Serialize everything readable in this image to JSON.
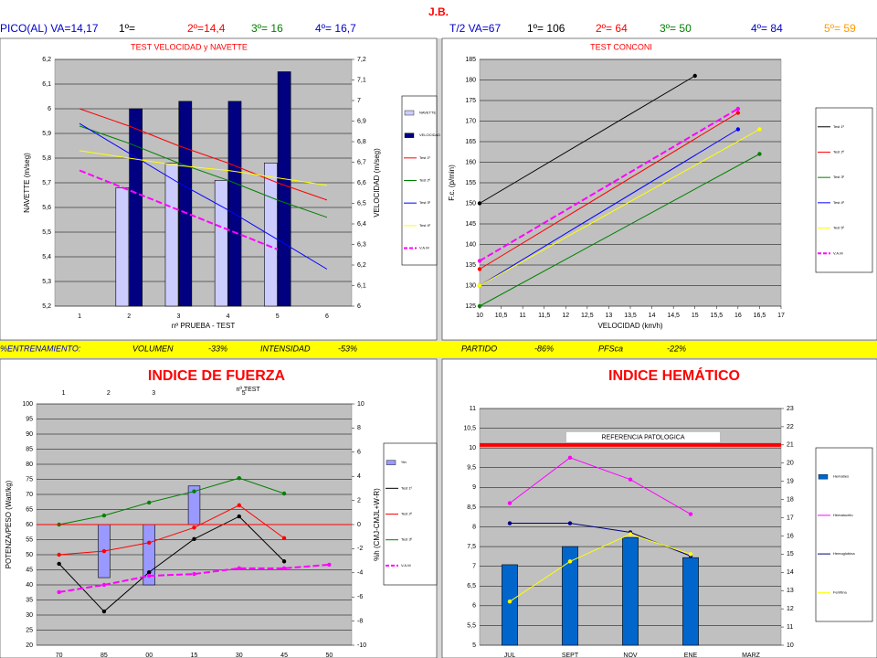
{
  "header": {
    "title": "J.B.",
    "row1": [
      {
        "text": "PICO(AL) VA=14,17",
        "color": "#0000cc"
      },
      {
        "text": "1º=",
        "color": "#000000"
      },
      {
        "text": "2º=14,4",
        "color": "#ff0000"
      },
      {
        "text": "3º= 16",
        "color": "#008000"
      },
      {
        "text": "4º= 16,7",
        "color": "#0000cc"
      },
      {
        "text": "T/2 VA=67",
        "color": "#0000cc"
      },
      {
        "text": "1º= 106",
        "color": "#000000"
      },
      {
        "text": "2º= 64",
        "color": "#ff0000"
      },
      {
        "text": "3º= 50",
        "color": "#008000"
      },
      {
        "text": "4º= 84",
        "color": "#0000cc"
      },
      {
        "text": "5º= 59",
        "color": "#ff9900"
      }
    ],
    "row2": [
      {
        "text": "%ENTRENAMIENTO:",
        "color": "#0000cc"
      },
      {
        "text": "VOLUMEN",
        "color": "#000000"
      },
      {
        "text": "-33%",
        "color": "#000000"
      },
      {
        "text": "INTENSIDAD",
        "color": "#000000"
      },
      {
        "text": "-53%",
        "color": "#000000"
      },
      {
        "text": "PARTIDO",
        "color": "#000000"
      },
      {
        "text": "-86%",
        "color": "#000000"
      },
      {
        "text": "PFSca",
        "color": "#000000"
      },
      {
        "text": "-22%",
        "color": "#000000"
      }
    ]
  },
  "chart_data": [
    {
      "type": "combo",
      "title": "TEST VELOCIDAD y NAVETTE",
      "xlabel": "nº PRUEBA - TEST",
      "ylabel": "NAVETTE (m/seg)",
      "y2label": "VELOCIDAD (m/seg)",
      "categories": [
        "1",
        "2",
        "3",
        "4",
        "5",
        "6"
      ],
      "ylim": [
        5.2,
        6.2
      ],
      "yticks": [
        {
          "value": 5.2,
          "label": "5,2"
        },
        {
          "value": 5.3,
          "label": "5,3"
        },
        {
          "value": 5.4,
          "label": "5,4"
        },
        {
          "value": 5.5,
          "label": "5,5"
        },
        {
          "value": 5.6,
          "label": "5,6"
        },
        {
          "value": 5.7,
          "label": "5,7"
        },
        {
          "value": 5.8,
          "label": "5,8"
        },
        {
          "value": 5.9,
          "label": "5,9"
        },
        6,
        {
          "value": 6.1,
          "label": "6,1"
        },
        {
          "value": 6.2,
          "label": "6,2"
        }
      ],
      "y2lim": [
        6,
        7.2
      ],
      "y2ticks": [
        6,
        {
          "value": 6.1,
          "label": "6,1"
        },
        {
          "value": 6.2,
          "label": "6,2"
        },
        {
          "value": 6.3,
          "label": "6,3"
        },
        {
          "value": 6.4,
          "label": "6,4"
        },
        {
          "value": 6.5,
          "label": "6,5"
        },
        {
          "value": 6.6,
          "label": "6,6"
        },
        {
          "value": 6.7,
          "label": "6,7"
        },
        {
          "value": 6.8,
          "label": "6,8"
        },
        {
          "value": 6.9,
          "label": "6,9"
        },
        7,
        {
          "value": 7.1,
          "label": "7,1"
        },
        {
          "value": 7.2,
          "label": "7,2"
        }
      ],
      "grid": true,
      "markers": false,
      "series": [
        {
          "name": "NAVETTE",
          "kind": "bar",
          "color": "#ccccff",
          "values": [
            null,
            5.68,
            5.78,
            5.71,
            5.78,
            null
          ]
        },
        {
          "name": "VELOCIDAD",
          "kind": "bar",
          "color": "#000080",
          "values": [
            null,
            6.0,
            6.03,
            6.03,
            6.15,
            null
          ]
        },
        {
          "name": "Test 1º",
          "kind": "line",
          "color": "#ff0000",
          "values": [
            6.0,
            5.93,
            5.85,
            5.78,
            5.7,
            5.63
          ]
        },
        {
          "name": "Test 2º",
          "kind": "line",
          "color": "#008000",
          "values": [
            5.93,
            5.86,
            5.78,
            5.71,
            5.63,
            5.56
          ]
        },
        {
          "name": "Test 3º",
          "kind": "line",
          "color": "#0000ff",
          "values": [
            5.94,
            5.82,
            5.7,
            5.59,
            5.47,
            5.35
          ]
        },
        {
          "name": "Test 4º",
          "kind": "line",
          "color": "#ffff00",
          "values": [
            5.83,
            5.8,
            5.77,
            5.75,
            5.72,
            5.69
          ]
        },
        {
          "name": "V.A.M",
          "kind": "line",
          "color": "#ff00ff",
          "dashed": true,
          "values": [
            5.75,
            5.67,
            5.59,
            5.51,
            5.43,
            null
          ]
        }
      ]
    },
    {
      "type": "combo",
      "title": "TEST CONCONI",
      "xlabel": "VELOCIDAD (km/h)",
      "ylabel": "F.c. (p/min)",
      "xlim": [
        10,
        17
      ],
      "xticks": [
        10,
        {
          "value": 10.5,
          "label": "10,5"
        },
        11,
        {
          "value": 11.5,
          "label": "11,5"
        },
        12,
        {
          "value": 12.5,
          "label": "12,5"
        },
        13,
        {
          "value": 13.5,
          "label": "13,5"
        },
        14,
        {
          "value": 14.5,
          "label": "14,5"
        },
        15,
        {
          "value": 15.5,
          "label": "15,5"
        },
        16,
        {
          "value": 16.5,
          "label": "16,5"
        },
        17
      ],
      "ylim": [
        125,
        185
      ],
      "yticks": [
        125,
        130,
        135,
        140,
        145,
        150,
        155,
        160,
        165,
        170,
        175,
        180,
        185
      ],
      "grid": true,
      "markers": true,
      "series": [
        {
          "name": "Test 1º",
          "kind": "line",
          "color": "#000000",
          "x": [
            10,
            15
          ],
          "values": [
            150,
            181
          ]
        },
        {
          "name": "Test 2º",
          "kind": "line",
          "color": "#ff0000",
          "x": [
            10,
            16
          ],
          "values": [
            134,
            172
          ]
        },
        {
          "name": "Test 3º",
          "kind": "line",
          "color": "#008000",
          "x": [
            10,
            16.5
          ],
          "values": [
            125,
            162
          ]
        },
        {
          "name": "Test 4º",
          "kind": "line",
          "color": "#0000ff",
          "x": [
            10,
            16
          ],
          "values": [
            130,
            168
          ]
        },
        {
          "name": "Test 5º",
          "kind": "line",
          "color": "#ffff00",
          "x": [
            10,
            16.5
          ],
          "values": [
            130,
            168
          ]
        },
        {
          "name": "V.A.M",
          "kind": "line",
          "color": "#ff00ff",
          "dashed": true,
          "x": [
            10,
            16
          ],
          "values": [
            136,
            173
          ]
        }
      ]
    },
    {
      "type": "combo",
      "title": "INDICE DE FUERZA",
      "ylabel": "POTENZA/PESO (Watt/kg)",
      "y2label": "%h (CMJ-CMJL+W-R)",
      "categories": [
        "70",
        "85",
        "00",
        "15",
        "30",
        "45",
        "50"
      ],
      "top_categories": [
        "1",
        "2",
        "3",
        null,
        "5"
      ],
      "top_label": "nº TEST",
      "ylim": [
        20,
        100
      ],
      "yticks": [
        20,
        25,
        30,
        35,
        40,
        45,
        50,
        55,
        60,
        65,
        70,
        75,
        80,
        85,
        90,
        95,
        100
      ],
      "y2lim": [
        -10,
        10
      ],
      "y2ticks": [
        -10,
        -8,
        -6,
        -4,
        -2,
        0,
        2,
        4,
        6,
        8,
        10
      ],
      "grid": true,
      "markers": true,
      "reference": {
        "value": 60,
        "color": "#ff0000"
      },
      "series": [
        {
          "name": "%h",
          "kind": "bar",
          "axis": "y2",
          "color": "#9999ff",
          "values": [
            null,
            -4.4,
            -5,
            3.2,
            null,
            null,
            null
          ]
        },
        {
          "name": "Test 1º",
          "kind": "line",
          "color": "#000000",
          "values": [
            47,
            31.2,
            44.2,
            55.2,
            62.7,
            47.8,
            null
          ]
        },
        {
          "name": "Test 2º",
          "kind": "line",
          "color": "#ff0000",
          "values": [
            50,
            51.2,
            54,
            59,
            66.4,
            55.5,
            null
          ]
        },
        {
          "name": "Test 3º",
          "kind": "line",
          "color": "#008000",
          "values": [
            60,
            63,
            67.3,
            71,
            75.4,
            70.3,
            null
          ]
        },
        {
          "name": "V.A.M",
          "kind": "line",
          "color": "#ff00ff",
          "dashed": true,
          "values": [
            37.6,
            40,
            43,
            43.6,
            45.5,
            45.5,
            46.7
          ]
        }
      ]
    },
    {
      "type": "combo",
      "title": "INDICE HEMÁTICO",
      "categories": [
        "JUL",
        "SEPT",
        "NOV",
        "ENE",
        "MARZ"
      ],
      "ylim": [
        5,
        11
      ],
      "yticks": [
        5,
        {
          "value": 5.5,
          "label": "5,5"
        },
        6,
        {
          "value": 6.5,
          "label": "6,5"
        },
        7,
        {
          "value": 7.5,
          "label": "7,5"
        },
        8,
        {
          "value": 8.5,
          "label": "8,5"
        },
        9,
        {
          "value": 9.5,
          "label": "9,5"
        },
        10,
        {
          "value": 10.5,
          "label": "10,5"
        },
        11
      ],
      "y2lim": [
        10,
        23
      ],
      "y2ticks": [
        10,
        11,
        12,
        13,
        14,
        15,
        16,
        17,
        18,
        19,
        20,
        21,
        22,
        23
      ],
      "grid": true,
      "markers": true,
      "reference": {
        "value": 21,
        "axis": "y2",
        "color": "#ff0000",
        "label": "REFERENCIA PATOLOGICA"
      },
      "series": [
        {
          "name": "Hematíes",
          "kind": "bar",
          "color": "#0066cc",
          "values": [
            7.04,
            7.5,
            7.73,
            7.22,
            null
          ]
        },
        {
          "name": "Hematocrito",
          "kind": "line",
          "axis": "y2",
          "color": "#ff00ff",
          "values": [
            17.8,
            20.3,
            19.1,
            17.2,
            null
          ]
        },
        {
          "name": "Hemoglobina",
          "kind": "line",
          "axis": "y2",
          "color": "#000080",
          "values": [
            16.7,
            16.7,
            16.2,
            14.9,
            null
          ]
        },
        {
          "name": "Ferritina",
          "kind": "line",
          "axis": "y2",
          "color": "#ffff00",
          "values": [
            12.4,
            14.6,
            16.1,
            15,
            null
          ]
        }
      ]
    }
  ]
}
